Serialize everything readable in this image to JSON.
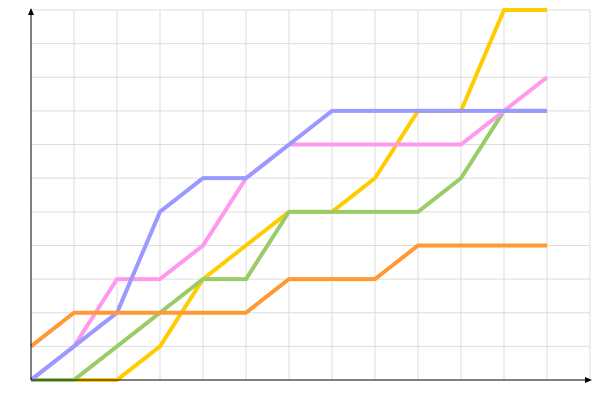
{
  "chart_data": {
    "type": "line",
    "title": "",
    "xlabel": "",
    "ylabel": "",
    "x": [
      0,
      1,
      2,
      3,
      4,
      5,
      6,
      7,
      8,
      9,
      10,
      11,
      12
    ],
    "xlim": [
      0,
      13
    ],
    "ylim": [
      0,
      11
    ],
    "grid": true,
    "legend": "none",
    "series": [
      {
        "color": "#ffcc00",
        "values": [
          0,
          0,
          0,
          1,
          3,
          4,
          5,
          5,
          6,
          8,
          8,
          11,
          11
        ]
      },
      {
        "color": "#99cc66",
        "values": [
          0,
          0,
          1,
          2,
          3,
          3,
          5,
          5,
          5,
          5,
          6,
          8,
          8
        ]
      },
      {
        "color": "#ff99ee",
        "values": [
          0,
          1,
          3,
          3,
          4,
          6,
          7,
          7,
          7,
          7,
          7,
          8,
          9
        ]
      },
      {
        "color": "#9999ff",
        "values": [
          0,
          1,
          2,
          5,
          6,
          6,
          7,
          8,
          8,
          8,
          8,
          8,
          8
        ]
      },
      {
        "color": "#ff9933",
        "values": [
          1,
          2,
          2,
          2,
          2,
          2,
          3,
          3,
          3,
          4,
          4,
          4,
          4
        ]
      }
    ]
  }
}
